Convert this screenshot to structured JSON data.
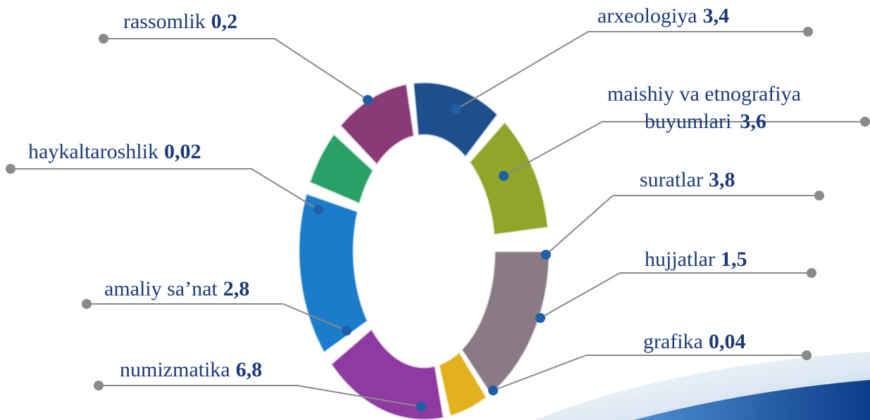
{
  "items": [
    {
      "label": "rassomlik",
      "value": "0,2"
    },
    {
      "label": "arxeologiya",
      "value": "3,4"
    },
    {
      "label": "maishiy va etnografiya",
      "label2": "buyumlari",
      "value": "3,6"
    },
    {
      "label": "suratlar",
      "value": "3,8"
    },
    {
      "label": "hujjatlar",
      "value": "1,5"
    },
    {
      "label": "grafika",
      "value": "0,04"
    },
    {
      "label": "numizmatika",
      "value": "6,8"
    },
    {
      "label": "amaliy sa’nat",
      "value": "2,8"
    },
    {
      "label": "haykaltaroshlik",
      "value": "0,02"
    }
  ]
}
